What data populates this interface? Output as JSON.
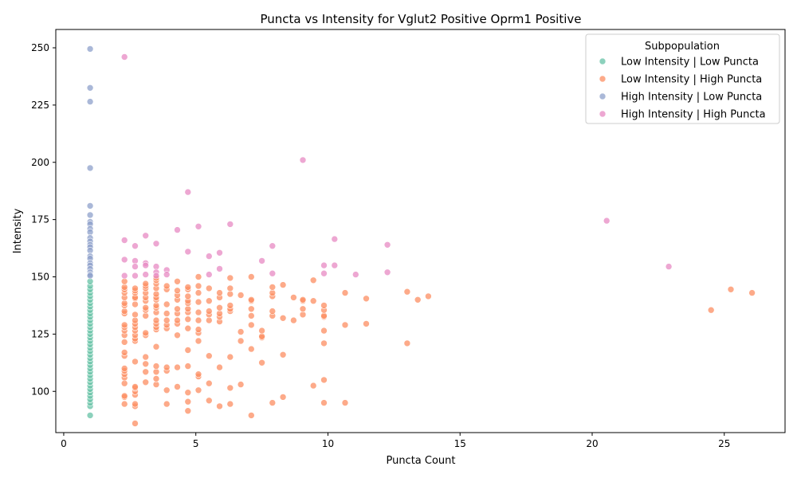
{
  "chart_data": {
    "type": "scatter",
    "title": "Puncta vs Intensity for Vglut2 Positive Oprm1 Positive",
    "xlabel": "Puncta Count",
    "ylabel": "Intensity",
    "xlim": [
      -0.3,
      27.3
    ],
    "ylim": [
      82,
      258
    ],
    "x_ticks": [
      0,
      5,
      10,
      15,
      20,
      25
    ],
    "y_ticks": [
      100,
      125,
      150,
      175,
      200,
      225,
      250
    ],
    "grid": false,
    "legend": {
      "title": "Subpopulation",
      "placement": "top-right"
    },
    "series": [
      {
        "name": "Low Intensity | Low Puncta",
        "color": "#66c2a5",
        "points": [
          [
            1,
            89.5
          ],
          [
            1,
            93.5
          ],
          [
            1,
            95
          ],
          [
            1,
            96.5
          ],
          [
            1,
            98
          ],
          [
            1,
            99.5
          ],
          [
            1,
            101
          ],
          [
            1,
            102.5
          ],
          [
            1,
            104
          ],
          [
            1,
            105.5
          ],
          [
            1,
            107
          ],
          [
            1,
            108.5
          ],
          [
            1,
            110
          ],
          [
            1,
            111.5
          ],
          [
            1,
            113
          ],
          [
            1,
            114.5
          ],
          [
            1,
            116
          ],
          [
            1,
            117.5
          ],
          [
            1,
            119
          ],
          [
            1,
            120.5
          ],
          [
            1,
            122
          ],
          [
            1,
            123.5
          ],
          [
            1,
            125
          ],
          [
            1,
            126.5
          ],
          [
            1,
            128
          ],
          [
            1,
            129.5
          ],
          [
            1,
            131
          ],
          [
            1,
            132.5
          ],
          [
            1,
            134
          ],
          [
            1,
            135.5
          ],
          [
            1,
            137
          ],
          [
            1,
            138.5
          ],
          [
            1,
            140
          ],
          [
            1,
            141.5
          ],
          [
            1,
            143
          ],
          [
            1,
            144.5
          ],
          [
            1,
            146
          ],
          [
            1,
            148
          ]
        ]
      },
      {
        "name": "Low Intensity | High Puncta",
        "color": "#fc8d62",
        "points": [
          [
            2.3,
            94.5
          ],
          [
            2.3,
            97.5
          ],
          [
            2.3,
            98
          ],
          [
            2.3,
            103.5
          ],
          [
            2.3,
            106
          ],
          [
            2.3,
            107.5
          ],
          [
            2.3,
            109
          ],
          [
            2.3,
            110
          ],
          [
            2.3,
            115.5
          ],
          [
            2.3,
            117
          ],
          [
            2.3,
            121.5
          ],
          [
            2.3,
            124.5
          ],
          [
            2.3,
            126.5
          ],
          [
            2.3,
            128
          ],
          [
            2.3,
            129
          ],
          [
            2.3,
            134
          ],
          [
            2.3,
            135
          ],
          [
            2.3,
            137.5
          ],
          [
            2.3,
            138.5
          ],
          [
            2.3,
            141
          ],
          [
            2.3,
            143
          ],
          [
            2.3,
            144.5
          ],
          [
            2.3,
            145.5
          ],
          [
            2.3,
            148
          ],
          [
            2.7,
            86
          ],
          [
            2.7,
            93.5
          ],
          [
            2.7,
            94.5
          ],
          [
            2.7,
            98.5
          ],
          [
            2.7,
            100
          ],
          [
            2.7,
            101.5
          ],
          [
            2.7,
            102
          ],
          [
            2.7,
            113
          ],
          [
            2.7,
            122
          ],
          [
            2.7,
            123
          ],
          [
            2.7,
            124.5
          ],
          [
            2.7,
            126.5
          ],
          [
            2.7,
            128
          ],
          [
            2.7,
            129.5
          ],
          [
            2.7,
            131
          ],
          [
            2.7,
            133.5
          ],
          [
            2.7,
            138
          ],
          [
            2.7,
            140.5
          ],
          [
            2.7,
            141
          ],
          [
            2.7,
            143
          ],
          [
            2.7,
            144
          ],
          [
            2.7,
            145
          ],
          [
            3.1,
            104
          ],
          [
            3.1,
            108.5
          ],
          [
            3.1,
            112
          ],
          [
            3.1,
            115
          ],
          [
            3.1,
            124.5
          ],
          [
            3.1,
            125.5
          ],
          [
            3.1,
            133
          ],
          [
            3.1,
            135.5
          ],
          [
            3.1,
            136.5
          ],
          [
            3.1,
            139.5
          ],
          [
            3.1,
            141
          ],
          [
            3.1,
            143
          ],
          [
            3.1,
            145
          ],
          [
            3.1,
            146
          ],
          [
            3.1,
            147
          ],
          [
            3.5,
            103
          ],
          [
            3.5,
            105.5
          ],
          [
            3.5,
            108.5
          ],
          [
            3.5,
            111
          ],
          [
            3.5,
            119.5
          ],
          [
            3.5,
            127
          ],
          [
            3.5,
            128
          ],
          [
            3.5,
            129.5
          ],
          [
            3.5,
            131
          ],
          [
            3.5,
            134.5
          ],
          [
            3.5,
            136.5
          ],
          [
            3.5,
            137.5
          ],
          [
            3.5,
            140
          ],
          [
            3.5,
            141
          ],
          [
            3.5,
            142.5
          ],
          [
            3.5,
            145
          ],
          [
            3.5,
            147
          ],
          [
            3.5,
            148.5
          ],
          [
            3.5,
            149.5
          ],
          [
            3.9,
            94.5
          ],
          [
            3.9,
            100.5
          ],
          [
            3.9,
            109
          ],
          [
            3.9,
            110.5
          ],
          [
            3.9,
            127.5
          ],
          [
            3.9,
            129
          ],
          [
            3.9,
            131
          ],
          [
            3.9,
            134
          ],
          [
            3.9,
            138
          ],
          [
            3.9,
            144.5
          ],
          [
            3.9,
            146
          ],
          [
            4.3,
            102
          ],
          [
            4.3,
            110.5
          ],
          [
            4.3,
            124.5
          ],
          [
            4.3,
            129.5
          ],
          [
            4.3,
            131
          ],
          [
            4.3,
            134
          ],
          [
            4.3,
            136
          ],
          [
            4.3,
            140
          ],
          [
            4.3,
            142
          ],
          [
            4.3,
            144
          ],
          [
            4.3,
            148
          ],
          [
            4.7,
            91.5
          ],
          [
            4.7,
            95.5
          ],
          [
            4.7,
            99.5
          ],
          [
            4.7,
            111
          ],
          [
            4.7,
            118
          ],
          [
            4.7,
            127.5
          ],
          [
            4.7,
            131.5
          ],
          [
            4.7,
            134.5
          ],
          [
            4.7,
            136
          ],
          [
            4.7,
            138.5
          ],
          [
            4.7,
            139.5
          ],
          [
            4.7,
            141.5
          ],
          [
            4.7,
            144.5
          ],
          [
            4.7,
            145.5
          ],
          [
            5.1,
            100.5
          ],
          [
            5.1,
            106.5
          ],
          [
            5.1,
            107.5
          ],
          [
            5.1,
            122
          ],
          [
            5.1,
            125.5
          ],
          [
            5.1,
            127
          ],
          [
            5.1,
            131
          ],
          [
            5.1,
            134.5
          ],
          [
            5.1,
            139
          ],
          [
            5.1,
            143
          ],
          [
            5.1,
            146
          ],
          [
            5.1,
            150
          ],
          [
            5.5,
            96
          ],
          [
            5.5,
            103.5
          ],
          [
            5.5,
            115.5
          ],
          [
            5.5,
            131
          ],
          [
            5.5,
            133.5
          ],
          [
            5.5,
            135
          ],
          [
            5.5,
            139.5
          ],
          [
            5.5,
            145
          ],
          [
            5.9,
            93.5
          ],
          [
            5.9,
            110.5
          ],
          [
            5.9,
            130.5
          ],
          [
            5.9,
            132.5
          ],
          [
            5.9,
            134
          ],
          [
            5.9,
            136.5
          ],
          [
            5.9,
            141
          ],
          [
            5.9,
            143
          ],
          [
            6.3,
            94.5
          ],
          [
            6.3,
            101.5
          ],
          [
            6.3,
            115
          ],
          [
            6.3,
            135
          ],
          [
            6.3,
            136
          ],
          [
            6.3,
            137.5
          ],
          [
            6.3,
            142.5
          ],
          [
            6.3,
            145
          ],
          [
            6.3,
            149.5
          ],
          [
            6.7,
            103
          ],
          [
            6.7,
            122
          ],
          [
            6.7,
            126
          ],
          [
            6.7,
            142
          ],
          [
            7.1,
            89.5
          ],
          [
            7.1,
            118.5
          ],
          [
            7.1,
            129
          ],
          [
            7.1,
            133
          ],
          [
            7.1,
            136
          ],
          [
            7.1,
            139.5
          ],
          [
            7.1,
            140
          ],
          [
            7.1,
            150
          ],
          [
            7.5,
            112.5
          ],
          [
            7.5,
            123.5
          ],
          [
            7.5,
            124
          ],
          [
            7.5,
            126.5
          ],
          [
            7.9,
            95
          ],
          [
            7.9,
            133
          ],
          [
            7.9,
            135
          ],
          [
            7.9,
            141.5
          ],
          [
            7.9,
            143
          ],
          [
            7.9,
            145.5
          ],
          [
            8.3,
            97.5
          ],
          [
            8.3,
            116
          ],
          [
            8.3,
            132
          ],
          [
            8.3,
            146.5
          ],
          [
            8.7,
            131
          ],
          [
            8.7,
            141
          ],
          [
            9.05,
            133.5
          ],
          [
            9.05,
            136
          ],
          [
            9.05,
            139.5
          ],
          [
            9.05,
            140
          ],
          [
            9.45,
            102.5
          ],
          [
            9.45,
            139.5
          ],
          [
            9.45,
            148.5
          ],
          [
            9.85,
            95
          ],
          [
            9.85,
            105
          ],
          [
            9.85,
            121
          ],
          [
            9.85,
            126.5
          ],
          [
            9.85,
            132.5
          ],
          [
            9.85,
            133
          ],
          [
            9.85,
            135.5
          ],
          [
            9.85,
            137.5
          ],
          [
            10.65,
            95
          ],
          [
            10.65,
            129
          ],
          [
            10.65,
            143
          ],
          [
            11.45,
            129.5
          ],
          [
            11.45,
            140.5
          ],
          [
            13.0,
            121
          ],
          [
            13.0,
            143.5
          ],
          [
            13.4,
            140
          ],
          [
            13.8,
            141.5
          ],
          [
            24.5,
            135.5
          ],
          [
            25.25,
            144.5
          ],
          [
            26.05,
            143
          ]
        ]
      },
      {
        "name": "High Intensity | Low Puncta",
        "color": "#8da0cb",
        "points": [
          [
            1,
            249.5
          ],
          [
            1,
            232.5
          ],
          [
            1,
            226.5
          ],
          [
            1,
            197.5
          ],
          [
            1,
            181
          ],
          [
            1,
            177
          ],
          [
            1,
            174
          ],
          [
            1,
            173
          ],
          [
            1,
            171
          ],
          [
            1,
            169.5
          ],
          [
            1,
            167
          ],
          [
            1,
            165.5
          ],
          [
            1,
            164
          ],
          [
            1,
            163
          ],
          [
            1,
            161.5
          ],
          [
            1,
            159
          ],
          [
            1,
            158
          ],
          [
            1,
            156
          ],
          [
            1,
            155
          ],
          [
            1,
            153.5
          ],
          [
            1,
            152
          ],
          [
            1,
            151
          ],
          [
            1,
            150.5
          ]
        ]
      },
      {
        "name": "High Intensity | High Puncta",
        "color": "#e78ac3",
        "points": [
          [
            2.3,
            246
          ],
          [
            2.3,
            166
          ],
          [
            2.3,
            157.5
          ],
          [
            2.3,
            150.5
          ],
          [
            2.7,
            163.5
          ],
          [
            2.7,
            157
          ],
          [
            2.7,
            154.5
          ],
          [
            2.7,
            150.5
          ],
          [
            3.1,
            168
          ],
          [
            3.1,
            156
          ],
          [
            3.1,
            155
          ],
          [
            3.1,
            151
          ],
          [
            3.5,
            164.5
          ],
          [
            3.5,
            154.5
          ],
          [
            3.5,
            152
          ],
          [
            3.5,
            150.5
          ],
          [
            3.9,
            153
          ],
          [
            3.9,
            151
          ],
          [
            4.3,
            170.5
          ],
          [
            4.7,
            187
          ],
          [
            4.7,
            161
          ],
          [
            5.1,
            172
          ],
          [
            5.5,
            159
          ],
          [
            5.5,
            151
          ],
          [
            5.9,
            160.5
          ],
          [
            5.9,
            153.5
          ],
          [
            6.3,
            173
          ],
          [
            7.5,
            157
          ],
          [
            7.9,
            163.5
          ],
          [
            7.9,
            151.5
          ],
          [
            9.05,
            201
          ],
          [
            9.85,
            155
          ],
          [
            9.85,
            151.5
          ],
          [
            10.25,
            166.5
          ],
          [
            10.25,
            155
          ],
          [
            11.05,
            151
          ],
          [
            12.25,
            164
          ],
          [
            12.25,
            152
          ],
          [
            20.55,
            174.5
          ],
          [
            22.9,
            154.5
          ]
        ]
      }
    ]
  }
}
